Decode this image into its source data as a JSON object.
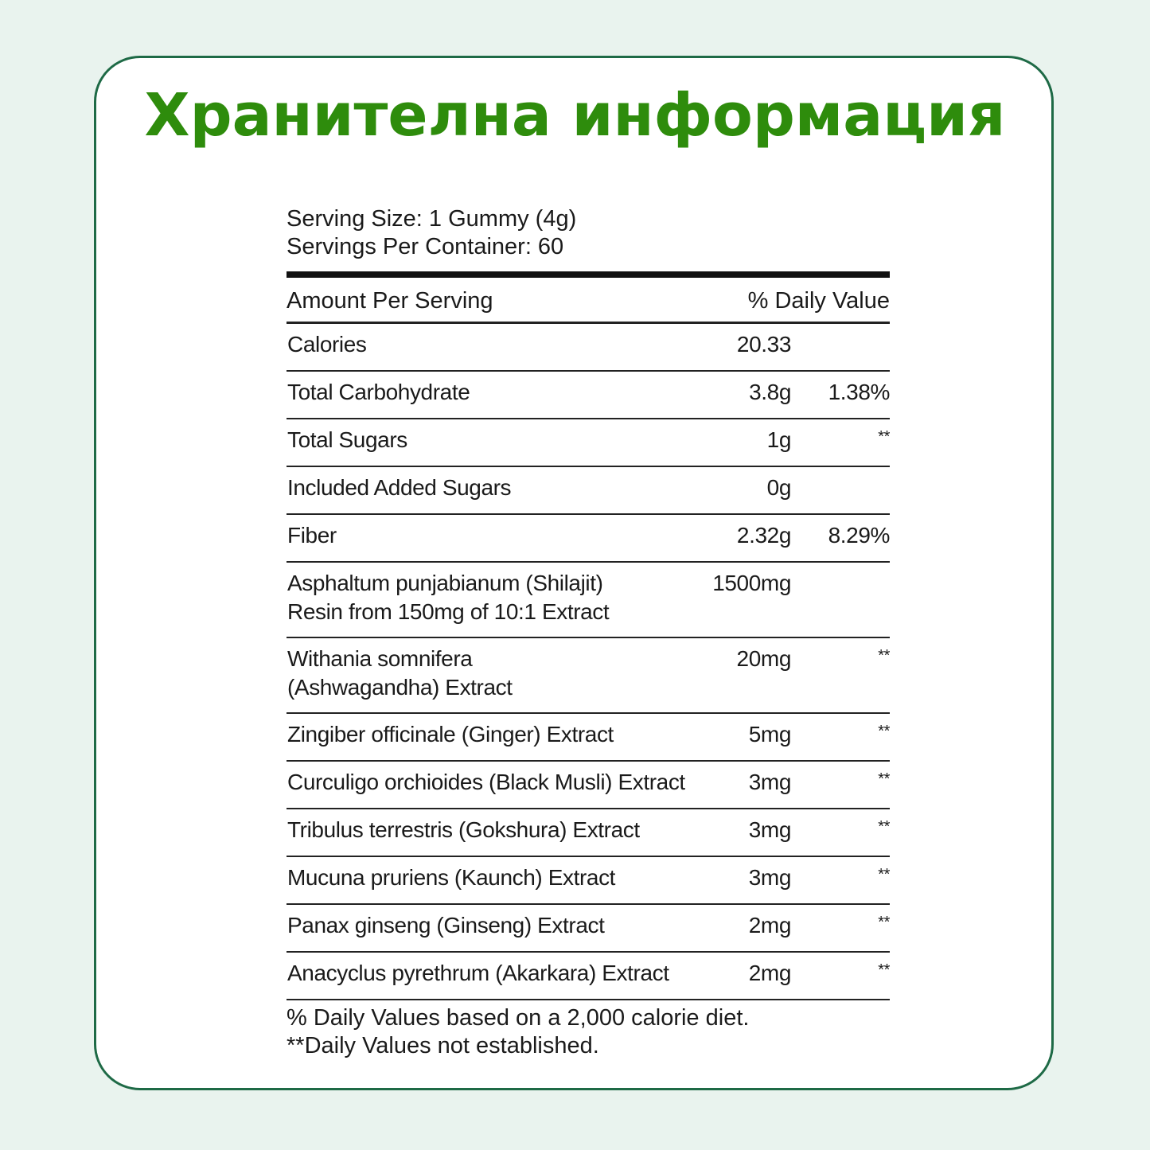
{
  "title": "Хранителна информация",
  "serving_size": "Serving Size: 1 Gummy (4g)",
  "servings_per_container": "Servings Per Container: 60",
  "header": {
    "amount": "Amount Per Serving",
    "dv": "% Daily Value"
  },
  "rows": [
    {
      "name": "Calories",
      "amount": "20.33",
      "dv": ""
    },
    {
      "name": "Total Carbohydrate",
      "amount": "3.8g",
      "dv": "1.38%"
    },
    {
      "name": "Total Sugars",
      "amount": "1g",
      "dv": "**"
    },
    {
      "name": "Included Added Sugars",
      "amount": "0g",
      "dv": ""
    },
    {
      "name": "Fiber",
      "amount": "2.32g",
      "dv": "8.29%"
    },
    {
      "name": "Asphaltum punjabianum (Shilajit)",
      "name2": "Resin from 150mg of 10:1 Extract",
      "amount": "1500mg",
      "dv": ""
    },
    {
      "name": "Withania somnifera",
      "name2": "(Ashwagandha) Extract",
      "amount": "20mg",
      "dv": "**"
    },
    {
      "name": "Zingiber officinale (Ginger) Extract",
      "amount": "5mg",
      "dv": "**"
    },
    {
      "name": "Curculigo orchioides (Black Musli) Extract",
      "amount": "3mg",
      "dv": "**"
    },
    {
      "name": "Tribulus terrestris (Gokshura) Extract",
      "amount": "3mg",
      "dv": "**"
    },
    {
      "name": "Mucuna pruriens (Kaunch) Extract",
      "amount": "3mg",
      "dv": "**"
    },
    {
      "name": "Panax ginseng (Ginseng) Extract",
      "amount": "2mg",
      "dv": "**"
    },
    {
      "name": "Anacyclus pyrethrum (Akarkara) Extract",
      "amount": "2mg",
      "dv": "**"
    }
  ],
  "footnote1": "% Daily Values based on a 2,000 calorie diet.",
  "footnote2": "**Daily Values not established.",
  "colors": {
    "title": "#2e8c0c",
    "border": "#1e6a46",
    "background": "#e9f3ee"
  }
}
